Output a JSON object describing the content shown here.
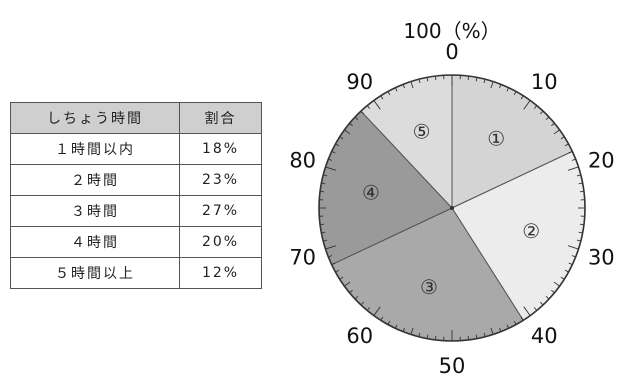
{
  "table": {
    "header": {
      "label": "しちょう時間",
      "ratio": "割合"
    },
    "rows": [
      {
        "label": "１時間以内",
        "ratio": "18%"
      },
      {
        "label": "２時間",
        "ratio": "23%"
      },
      {
        "label": "３時間",
        "ratio": "27%"
      },
      {
        "label": "４時間",
        "ratio": "20%"
      },
      {
        "label": "５時間以上",
        "ratio": "12%"
      }
    ]
  },
  "chart_data": {
    "type": "pie",
    "scale_top_label": "100（%）",
    "scale_labels": [
      "0",
      "10",
      "20",
      "30",
      "40",
      "50",
      "60",
      "70",
      "80",
      "90"
    ],
    "slices": [
      {
        "label": "①",
        "value": 18,
        "color": "#d4d4d4"
      },
      {
        "label": "②",
        "value": 23,
        "color": "#ececec"
      },
      {
        "label": "③",
        "value": 27,
        "color": "#a9a9a9"
      },
      {
        "label": "④",
        "value": 20,
        "color": "#9a9a9a"
      },
      {
        "label": "⑤",
        "value": 12,
        "color": "#dcdcdc"
      }
    ]
  }
}
